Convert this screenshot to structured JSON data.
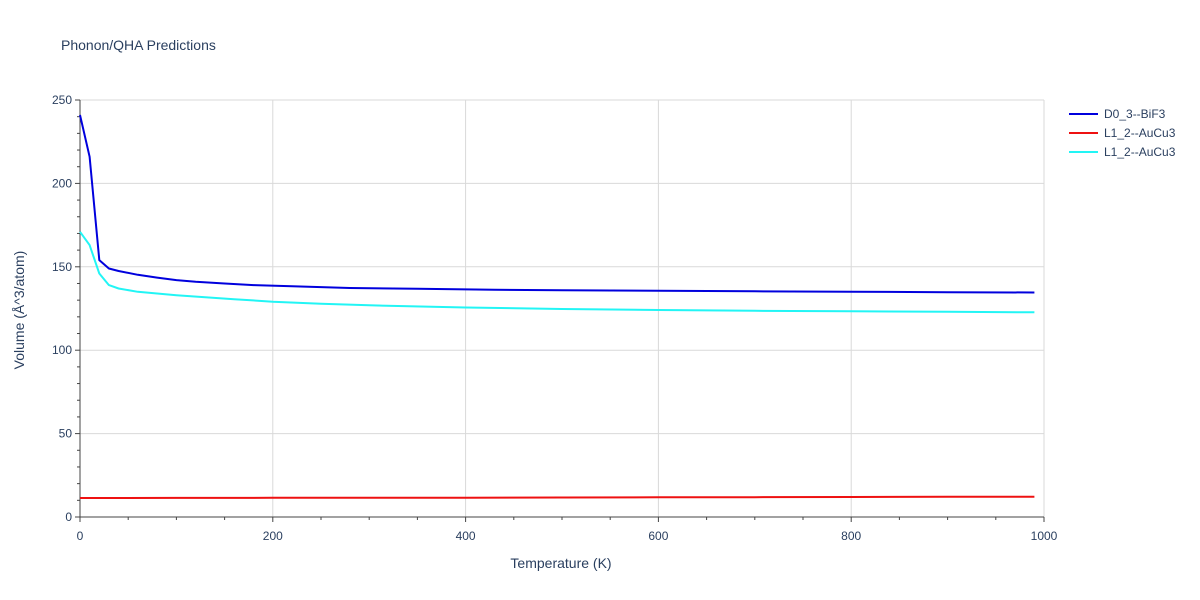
{
  "chart_data": {
    "type": "line",
    "title": "Phonon/QHA Predictions",
    "xlabel": "Temperature (K)",
    "ylabel": "Volume (Å^3/atom)",
    "xlim": [
      0,
      1000
    ],
    "ylim": [
      0,
      250
    ],
    "x_ticks": [
      0,
      200,
      400,
      600,
      800,
      1000
    ],
    "y_ticks": [
      0,
      50,
      100,
      150,
      200,
      250
    ],
    "grid": true,
    "legend_position": "top-right",
    "series": [
      {
        "name": "D0_3--BiF3",
        "color": "#0000dd",
        "x": [
          0,
          10,
          20,
          30,
          40,
          60,
          80,
          100,
          120,
          150,
          180,
          220,
          280,
          350,
          430,
          500,
          600,
          700,
          800,
          900,
          990
        ],
        "y": [
          241,
          216,
          154,
          149,
          147.5,
          145.2,
          143.5,
          142,
          141,
          140,
          139,
          138.3,
          137.3,
          136.8,
          136.2,
          135.9,
          135.6,
          135.3,
          135.1,
          134.8,
          134.6
        ]
      },
      {
        "name": "L1_2--AuCu3",
        "color": "#ee1111",
        "x": [
          0,
          100,
          200,
          300,
          400,
          500,
          600,
          700,
          800,
          900,
          990
        ],
        "y": [
          11.4,
          11.45,
          11.5,
          11.55,
          11.6,
          11.7,
          11.8,
          11.9,
          12.0,
          12.1,
          12.2
        ]
      },
      {
        "name": "L1_2--AuCu3",
        "color": "#22f5f5",
        "x": [
          0,
          10,
          20,
          30,
          40,
          60,
          80,
          100,
          130,
          160,
          200,
          250,
          300,
          400,
          500,
          600,
          700,
          800,
          900,
          990
        ],
        "y": [
          171,
          163,
          146,
          139,
          137,
          135,
          134,
          133,
          131.8,
          130.6,
          129.1,
          127.9,
          126.9,
          125.6,
          124.7,
          124.1,
          123.6,
          123.3,
          123,
          122.7
        ]
      }
    ]
  }
}
